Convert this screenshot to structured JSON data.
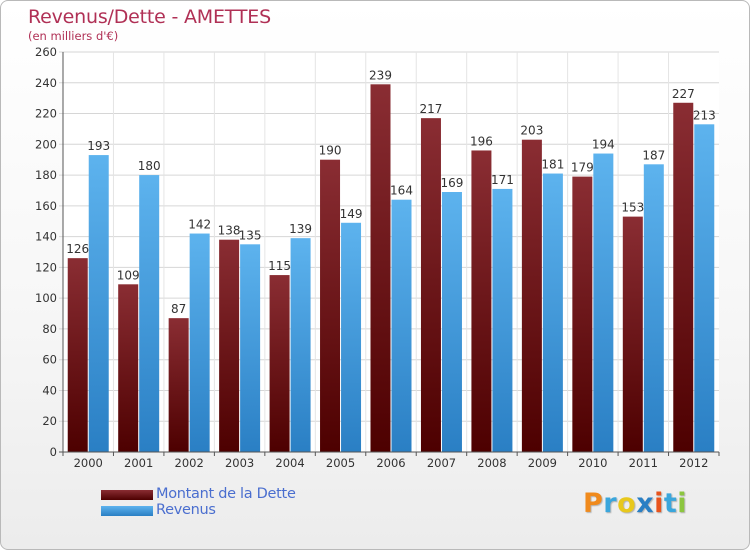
{
  "title": "Revenus/Dette - AMETTES",
  "subtitle": "(en milliers d'€)",
  "logo_text": "Proxiti",
  "colors": {
    "dette": "#7a1a1f",
    "revenus": "#3a9be0",
    "title": "#b03055",
    "legend_text": "#4a6ecf"
  },
  "chart_data": {
    "type": "bar",
    "title": "Revenus/Dette - AMETTES",
    "subtitle": "(en milliers d'€)",
    "xlabel": "",
    "ylabel": "",
    "ylim": [
      0,
      260
    ],
    "yticks": [
      0,
      20,
      40,
      60,
      80,
      100,
      120,
      140,
      160,
      180,
      200,
      220,
      240,
      260
    ],
    "grid": true,
    "legend_position": "bottom-left",
    "categories": [
      "2000",
      "2001",
      "2002",
      "2003",
      "2004",
      "2005",
      "2006",
      "2007",
      "2008",
      "2009",
      "2010",
      "2011",
      "2012"
    ],
    "series": [
      {
        "name": "Montant de la Dette",
        "color": "#7a1a1f",
        "values": [
          126,
          109,
          87,
          138,
          115,
          190,
          239,
          217,
          196,
          203,
          179,
          153,
          227
        ]
      },
      {
        "name": "Revenus",
        "color": "#3a9be0",
        "values": [
          193,
          180,
          142,
          135,
          139,
          149,
          164,
          169,
          171,
          181,
          194,
          187,
          213
        ]
      }
    ]
  }
}
